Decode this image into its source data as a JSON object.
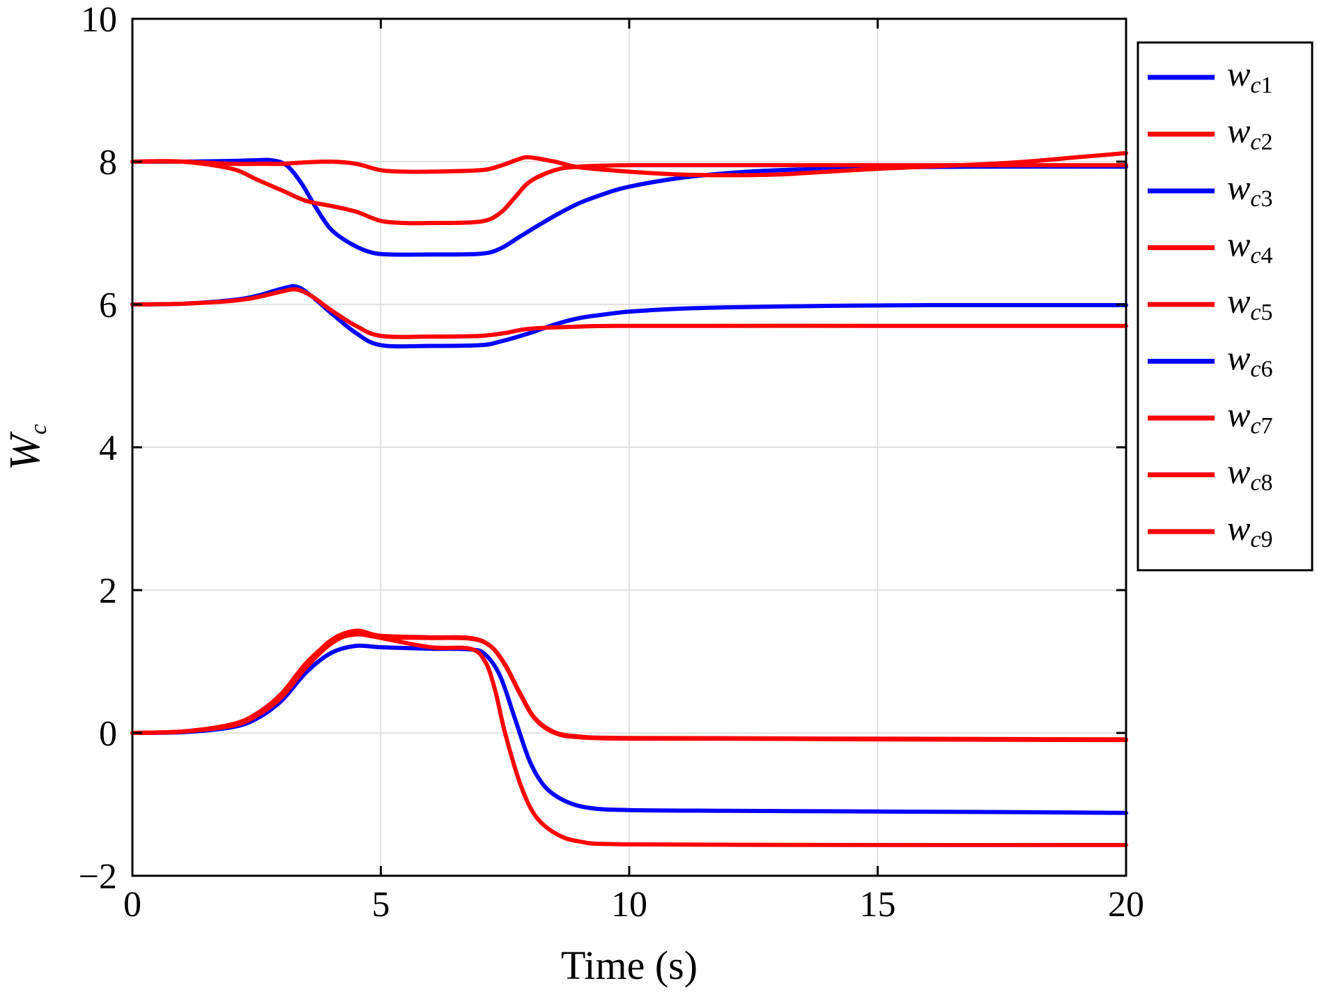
{
  "chart_data": {
    "type": "line",
    "xlabel": "Time (s)",
    "ylabel": "W",
    "ylabel_sub": "c",
    "xlim": [
      0,
      20
    ],
    "ylim": [
      -2,
      10
    ],
    "xticks": [
      0,
      5,
      10,
      15,
      20
    ],
    "yticks": [
      -2,
      0,
      2,
      4,
      6,
      8,
      10
    ],
    "xtick_labels": [
      "0",
      "5",
      "10",
      "15",
      "20"
    ],
    "ytick_labels": [
      "−2",
      "0",
      "2",
      "4",
      "6",
      "8",
      "10"
    ],
    "grid": true,
    "legend_position": "right-outside-top",
    "colors": {
      "blue": "#0000ff",
      "red": "#ff0000"
    },
    "series": [
      {
        "name": "w",
        "sub": "c1",
        "color": "#0000ff",
        "points": [
          [
            0,
            8.0
          ],
          [
            1,
            8.0
          ],
          [
            2,
            8.01
          ],
          [
            2.5,
            8.02
          ],
          [
            2.8,
            8.02
          ],
          [
            3.1,
            7.95
          ],
          [
            3.4,
            7.7
          ],
          [
            3.7,
            7.35
          ],
          [
            4.0,
            7.05
          ],
          [
            4.4,
            6.85
          ],
          [
            4.8,
            6.73
          ],
          [
            5.2,
            6.7
          ],
          [
            6,
            6.7
          ],
          [
            7.0,
            6.71
          ],
          [
            7.4,
            6.78
          ],
          [
            7.8,
            6.95
          ],
          [
            8.2,
            7.12
          ],
          [
            8.6,
            7.28
          ],
          [
            9,
            7.42
          ],
          [
            9.5,
            7.55
          ],
          [
            10,
            7.65
          ],
          [
            11,
            7.77
          ],
          [
            12,
            7.84
          ],
          [
            13,
            7.88
          ],
          [
            14,
            7.9
          ],
          [
            15,
            7.92
          ],
          [
            17,
            7.93
          ],
          [
            20,
            7.93
          ]
        ]
      },
      {
        "name": "w",
        "sub": "c2",
        "color": "#ff0000",
        "points": [
          [
            0,
            8.0
          ],
          [
            1,
            8.0
          ],
          [
            2,
            7.97
          ],
          [
            2.5,
            7.97
          ],
          [
            3,
            7.97
          ],
          [
            3.5,
            7.99
          ],
          [
            4,
            8.0
          ],
          [
            4.5,
            7.97
          ],
          [
            5,
            7.88
          ],
          [
            5.5,
            7.86
          ],
          [
            6,
            7.86
          ],
          [
            7,
            7.88
          ],
          [
            7.4,
            7.94
          ],
          [
            7.8,
            8.04
          ],
          [
            8.0,
            8.06
          ],
          [
            8.5,
            8.0
          ],
          [
            9,
            7.92
          ],
          [
            10,
            7.86
          ],
          [
            11,
            7.82
          ],
          [
            12,
            7.81
          ],
          [
            13,
            7.82
          ],
          [
            14,
            7.86
          ],
          [
            15,
            7.9
          ],
          [
            17,
            7.96
          ],
          [
            18,
            8.0
          ],
          [
            19,
            8.06
          ],
          [
            20,
            8.12
          ]
        ]
      },
      {
        "name": "w",
        "sub": "c3",
        "color": "#0000ff",
        "points": [
          [
            0,
            6.0
          ],
          [
            1,
            6.01
          ],
          [
            2,
            6.06
          ],
          [
            2.5,
            6.12
          ],
          [
            3,
            6.22
          ],
          [
            3.3,
            6.25
          ],
          [
            3.6,
            6.12
          ],
          [
            4,
            5.88
          ],
          [
            4.5,
            5.6
          ],
          [
            5,
            5.43
          ],
          [
            6,
            5.42
          ],
          [
            7,
            5.43
          ],
          [
            7.4,
            5.48
          ],
          [
            8,
            5.6
          ],
          [
            8.5,
            5.72
          ],
          [
            9,
            5.81
          ],
          [
            9.5,
            5.86
          ],
          [
            10,
            5.9
          ],
          [
            11,
            5.94
          ],
          [
            12,
            5.96
          ],
          [
            14,
            5.98
          ],
          [
            16,
            5.99
          ],
          [
            20,
            5.99
          ]
        ]
      },
      {
        "name": "w",
        "sub": "c4",
        "color": "#ff0000",
        "points": [
          [
            0,
            8.0
          ],
          [
            1,
            8.0
          ],
          [
            2,
            7.9
          ],
          [
            2.5,
            7.75
          ],
          [
            3,
            7.6
          ],
          [
            3.5,
            7.45
          ],
          [
            4,
            7.38
          ],
          [
            4.5,
            7.3
          ],
          [
            5,
            7.17
          ],
          [
            5.5,
            7.14
          ],
          [
            6,
            7.14
          ],
          [
            7,
            7.16
          ],
          [
            7.4,
            7.28
          ],
          [
            7.7,
            7.5
          ],
          [
            8,
            7.72
          ],
          [
            8.5,
            7.88
          ],
          [
            9,
            7.93
          ],
          [
            10,
            7.95
          ],
          [
            12,
            7.95
          ],
          [
            15,
            7.95
          ],
          [
            20,
            7.95
          ]
        ]
      },
      {
        "name": "w",
        "sub": "c5",
        "color": "#ff0000",
        "points": [
          [
            0,
            6.0
          ],
          [
            1,
            6.01
          ],
          [
            2,
            6.05
          ],
          [
            2.5,
            6.1
          ],
          [
            3,
            6.18
          ],
          [
            3.3,
            6.21
          ],
          [
            3.6,
            6.12
          ],
          [
            4,
            5.92
          ],
          [
            4.5,
            5.7
          ],
          [
            5,
            5.56
          ],
          [
            6,
            5.55
          ],
          [
            7,
            5.56
          ],
          [
            7.5,
            5.6
          ],
          [
            8,
            5.66
          ],
          [
            9,
            5.69
          ],
          [
            10,
            5.7
          ],
          [
            15,
            5.7
          ],
          [
            20,
            5.7
          ]
        ]
      },
      {
        "name": "w",
        "sub": "c6",
        "color": "#0000ff",
        "points": [
          [
            0,
            0.0
          ],
          [
            1,
            0.01
          ],
          [
            2,
            0.08
          ],
          [
            2.5,
            0.2
          ],
          [
            3,
            0.45
          ],
          [
            3.5,
            0.85
          ],
          [
            4,
            1.12
          ],
          [
            4.5,
            1.22
          ],
          [
            5,
            1.2
          ],
          [
            6,
            1.18
          ],
          [
            6.8,
            1.17
          ],
          [
            7.1,
            1.1
          ],
          [
            7.4,
            0.8
          ],
          [
            7.7,
            0.2
          ],
          [
            8,
            -0.4
          ],
          [
            8.3,
            -0.75
          ],
          [
            8.7,
            -0.95
          ],
          [
            9.2,
            -1.05
          ],
          [
            10,
            -1.08
          ],
          [
            12,
            -1.09
          ],
          [
            15,
            -1.1
          ],
          [
            18,
            -1.11
          ],
          [
            20,
            -1.12
          ]
        ]
      },
      {
        "name": "w",
        "sub": "c7",
        "color": "#ff0000",
        "points": [
          [
            0,
            0.0
          ],
          [
            1,
            0.02
          ],
          [
            2,
            0.12
          ],
          [
            2.5,
            0.27
          ],
          [
            3,
            0.55
          ],
          [
            3.5,
            0.98
          ],
          [
            4,
            1.28
          ],
          [
            4.5,
            1.38
          ],
          [
            5,
            1.34
          ],
          [
            6,
            1.33
          ],
          [
            6.8,
            1.32
          ],
          [
            7.2,
            1.22
          ],
          [
            7.5,
            0.95
          ],
          [
            7.8,
            0.55
          ],
          [
            8.1,
            0.2
          ],
          [
            8.5,
            0.0
          ],
          [
            9,
            -0.06
          ],
          [
            10,
            -0.08
          ],
          [
            12,
            -0.08
          ],
          [
            15,
            -0.09
          ],
          [
            20,
            -0.1
          ]
        ]
      },
      {
        "name": "w",
        "sub": "c8",
        "color": "#ff0000",
        "points": [
          [
            0,
            0.0
          ],
          [
            1,
            0.02
          ],
          [
            2,
            0.1
          ],
          [
            2.5,
            0.24
          ],
          [
            3,
            0.5
          ],
          [
            3.5,
            0.92
          ],
          [
            4,
            1.25
          ],
          [
            4.5,
            1.4
          ],
          [
            5,
            1.33
          ],
          [
            6,
            1.2
          ],
          [
            6.8,
            1.18
          ],
          [
            7.1,
            1.0
          ],
          [
            7.3,
            0.6
          ],
          [
            7.5,
            0.0
          ],
          [
            7.8,
            -0.7
          ],
          [
            8.1,
            -1.15
          ],
          [
            8.5,
            -1.4
          ],
          [
            9,
            -1.52
          ],
          [
            10,
            -1.56
          ],
          [
            15,
            -1.57
          ],
          [
            20,
            -1.57
          ]
        ]
      },
      {
        "name": "w",
        "sub": "c9",
        "color": "#ff0000",
        "points": [
          [
            0,
            0.0
          ],
          [
            1,
            0.02
          ],
          [
            2,
            0.11
          ],
          [
            2.5,
            0.25
          ],
          [
            3,
            0.52
          ],
          [
            3.5,
            0.95
          ],
          [
            4,
            1.3
          ],
          [
            4.5,
            1.43
          ],
          [
            5,
            1.36
          ],
          [
            6,
            1.34
          ],
          [
            6.8,
            1.33
          ],
          [
            7.2,
            1.22
          ],
          [
            7.5,
            0.96
          ],
          [
            7.8,
            0.56
          ],
          [
            8.1,
            0.21
          ],
          [
            8.5,
            0.01
          ],
          [
            9,
            -0.05
          ],
          [
            10,
            -0.07
          ],
          [
            15,
            -0.08
          ],
          [
            20,
            -0.09
          ]
        ]
      }
    ]
  }
}
